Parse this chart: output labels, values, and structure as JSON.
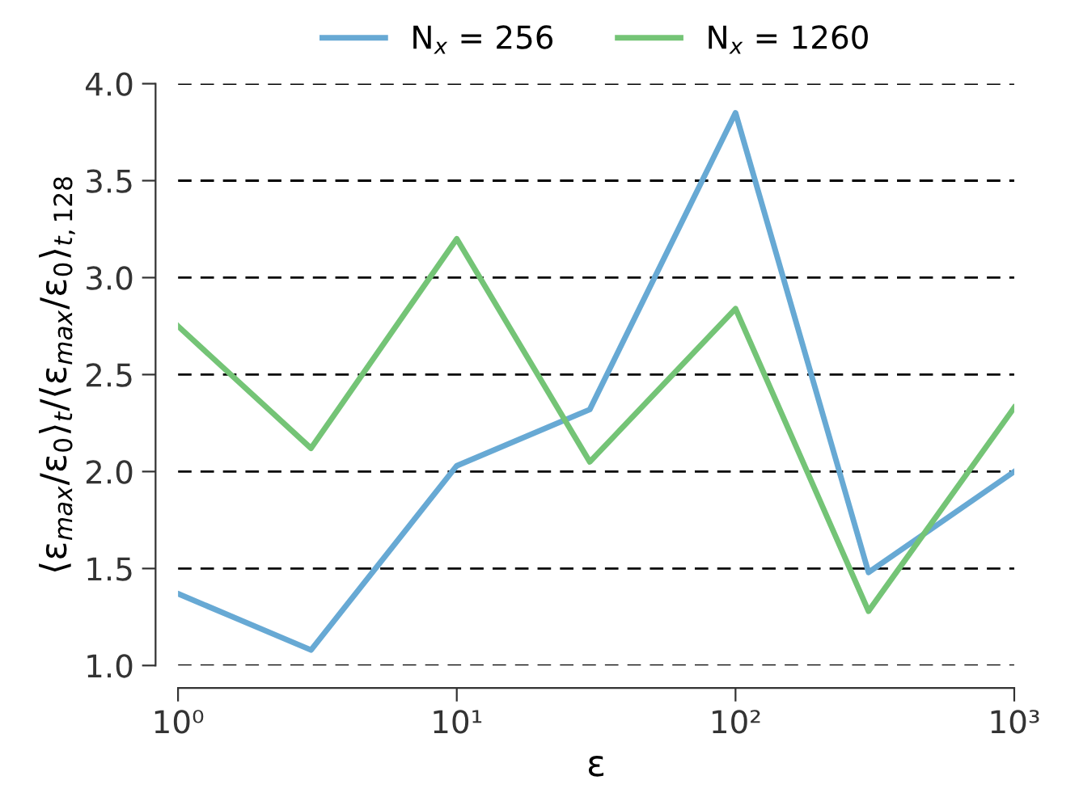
{
  "chart_data": {
    "type": "line",
    "xlabel": "ε",
    "ylabel": "⟨ε$_{max}$/ε$_{0}$⟩$_{t}$/⟨ε$_{max}$/ε$_{0}$⟩$_{t,128}$",
    "x": [
      1,
      3,
      10,
      30,
      100,
      300,
      1000
    ],
    "series": [
      {
        "name": "N$_{x}$ = 256",
        "color": "#67a9d4",
        "values": [
          1.37,
          1.08,
          2.03,
          2.32,
          3.85,
          1.48,
          2.0
        ]
      },
      {
        "name": "N$_{x}$ = 1260",
        "color": "#74c476",
        "values": [
          2.75,
          2.12,
          3.2,
          2.05,
          2.84,
          1.28,
          2.33
        ]
      }
    ],
    "log": "x",
    "xlim": [
      1,
      1000
    ],
    "xticks": [
      {
        "value": 1,
        "label": "10⁰"
      },
      {
        "value": 10,
        "label": "10¹"
      },
      {
        "value": 100,
        "label": "10²"
      },
      {
        "value": 1000,
        "label": "10³"
      }
    ],
    "ylim": [
      1.0,
      4.0
    ],
    "yticks": [
      {
        "value": 1.0,
        "label": "1.0"
      },
      {
        "value": 1.5,
        "label": "1.5"
      },
      {
        "value": 2.0,
        "label": "2.0"
      },
      {
        "value": 2.5,
        "label": "2.5"
      },
      {
        "value": 3.0,
        "label": "3.0"
      },
      {
        "value": 3.5,
        "label": "3.5"
      },
      {
        "value": 4.0,
        "label": "4.0"
      }
    ],
    "grid": "y",
    "legend": "top",
    "marker": "none",
    "line_style": "solid"
  }
}
